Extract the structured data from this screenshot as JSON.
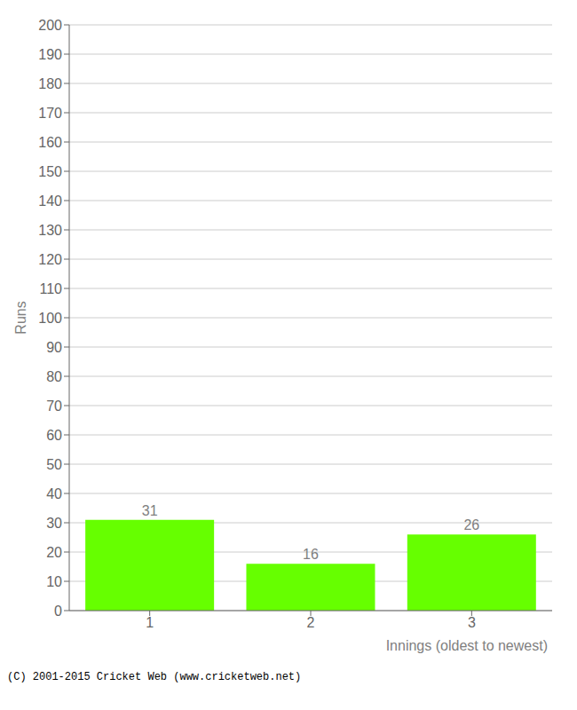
{
  "chart_data": {
    "type": "bar",
    "categories": [
      "1",
      "2",
      "3"
    ],
    "values": [
      31,
      16,
      26
    ],
    "color": "#66ff00",
    "xlabel": "Innings (oldest to newest)",
    "ylabel": "Runs",
    "ylim": [
      0,
      200
    ],
    "yticks": [
      0,
      10,
      20,
      30,
      40,
      50,
      60,
      70,
      80,
      90,
      100,
      110,
      120,
      130,
      140,
      150,
      160,
      170,
      180,
      190,
      200
    ],
    "grid": true,
    "data_labels": true,
    "annotations": [
      "(C) 2001-2015 Cricket Web (www.cricketweb.net)"
    ]
  }
}
